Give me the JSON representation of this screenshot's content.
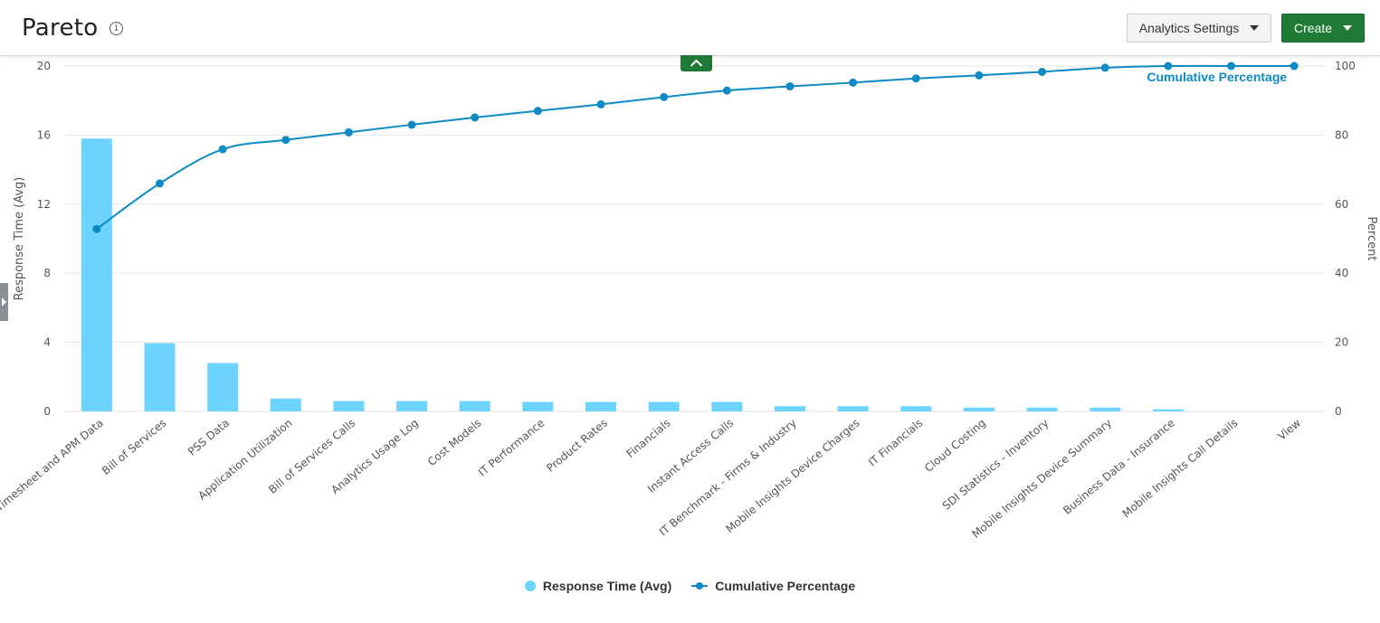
{
  "header": {
    "title": "Pareto",
    "info_icon": "info-icon",
    "settings_label": "Analytics Settings",
    "create_label": "Create",
    "collapse_icon": "chevron-up-icon",
    "side_panel_icon": "chevron-right-icon"
  },
  "colors": {
    "bar": "#6dd3ff",
    "line": "#0e8ac4",
    "create_button": "#1f7a35",
    "grid": "#e6e6e6"
  },
  "legend": {
    "items": [
      {
        "label": "Response Time (Avg)",
        "marker": "dot"
      },
      {
        "label": "Cumulative Percentage",
        "marker": "line"
      }
    ]
  },
  "chart_data": {
    "type": "bar",
    "categories": [
      "Timesheet and APM Data",
      "Bill of Services",
      "PSS Data",
      "Application Utilization",
      "Bill of Services Calls",
      "Analytics Usage Log",
      "Cost Models",
      "IT Performance",
      "Product Rates",
      "Financials",
      "Instant Access Calls",
      "IT Benchmark - Firms & Industry",
      "Mobile Insights Device Charges",
      "IT Financials",
      "Cloud Costing",
      "SDI Statistics - Inventory",
      "Mobile Insights Device Summary",
      "Business Data - Insurance",
      "Mobile Insights Call Details",
      "View"
    ],
    "series": [
      {
        "name": "Response Time (Avg)",
        "type": "bar",
        "axis": "left",
        "values": [
          15.8,
          3.95,
          2.8,
          0.75,
          0.6,
          0.6,
          0.6,
          0.55,
          0.55,
          0.55,
          0.55,
          0.3,
          0.3,
          0.3,
          0.22,
          0.22,
          0.22,
          0.12,
          0.0,
          0.0
        ]
      },
      {
        "name": "Cumulative Percentage",
        "type": "line",
        "axis": "right",
        "values": [
          52.8,
          66.0,
          75.9,
          78.6,
          80.8,
          83.0,
          85.1,
          87.0,
          88.9,
          91.0,
          92.9,
          94.1,
          95.2,
          96.4,
          97.3,
          98.3,
          99.5,
          100.0,
          100.0,
          100.0
        ]
      }
    ],
    "ylabel": "Response Time (Avg)",
    "ylim": [
      0,
      20
    ],
    "yticks": [
      "0",
      "4",
      "8",
      "12",
      "16",
      "20"
    ],
    "y2label": "Percent",
    "y2lim": [
      0,
      100
    ],
    "y2ticks": [
      "0",
      "20",
      "40",
      "60",
      "80",
      "100"
    ],
    "line_label": "Cumulative Percentage",
    "grid": true,
    "legend_position": "bottom"
  }
}
